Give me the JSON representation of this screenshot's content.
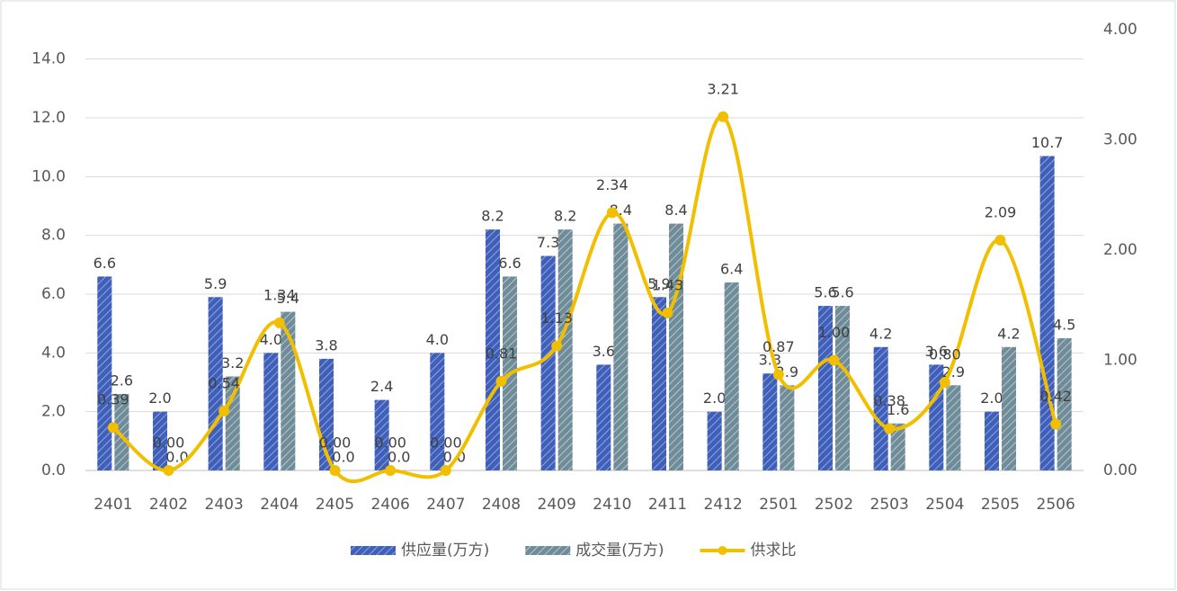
{
  "chart_data": {
    "type": "combo",
    "categories": [
      "2401",
      "2402",
      "2403",
      "2404",
      "2405",
      "2406",
      "2407",
      "2408",
      "2409",
      "2410",
      "2411",
      "2412",
      "2501",
      "2502",
      "2503",
      "2504",
      "2505",
      "2506"
    ],
    "series": [
      {
        "name": "供应量(万方)",
        "type": "bar",
        "color": "#3f5fb8",
        "axis": "y",
        "values": [
          6.6,
          2.0,
          5.9,
          4.0,
          3.8,
          2.4,
          4.0,
          8.2,
          7.3,
          3.6,
          5.9,
          2.0,
          3.3,
          5.6,
          4.2,
          3.6,
          2.0,
          10.7
        ],
        "value_labels": [
          "6.6",
          "2.0",
          "5.9",
          "4.0",
          "3.8",
          "2.4",
          "4.0",
          "8.2",
          "7.3",
          "3.6",
          "5.9",
          "2.0",
          "3.3",
          "5.6",
          "4.2",
          "3.6",
          "2.0",
          "10.7"
        ]
      },
      {
        "name": "成交量(万方)",
        "type": "bar",
        "color": "#6f8c98",
        "axis": "y",
        "values": [
          2.6,
          0.0,
          3.2,
          5.4,
          0.0,
          0.0,
          0.0,
          6.6,
          8.2,
          8.4,
          8.4,
          6.4,
          2.9,
          5.6,
          1.6,
          2.9,
          4.2,
          4.5
        ],
        "value_labels": [
          "2.6",
          "0.0",
          "3.2",
          "5.4",
          "0.0",
          "0.0",
          "0.0",
          "6.6",
          "8.2",
          "8.4",
          "8.4",
          "6.4",
          "2.9",
          "5.6",
          "1.6",
          "2.9",
          "4.2",
          "4.5"
        ]
      },
      {
        "name": "供求比",
        "type": "line",
        "color": "#f2bf00",
        "axis": "y2",
        "values": [
          0.39,
          0,
          0.54,
          1.34,
          0,
          0,
          0,
          0.81,
          1.13,
          2.34,
          1.43,
          3.21,
          0.87,
          1,
          0.38,
          0.8,
          2.09,
          0.42
        ],
        "value_labels": [
          "0.39",
          "0.00",
          "0.54",
          "1.34",
          "0.00",
          "0.00",
          "0.00",
          "0.81",
          "1.13",
          "2.34",
          "1.43",
          "3.21",
          "0.87",
          "1.00",
          "0.38",
          "0.80",
          "2.09",
          "0.42"
        ]
      }
    ],
    "ylim": [
      0,
      15
    ],
    "yticks": [
      {
        "value": 0,
        "label": "0.0"
      },
      {
        "value": 2,
        "label": "2.0"
      },
      {
        "value": 4,
        "label": "4.0"
      },
      {
        "value": 6,
        "label": "6.0"
      },
      {
        "value": 8,
        "label": "8.0"
      },
      {
        "value": 10,
        "label": "10.0"
      },
      {
        "value": 12,
        "label": "12.0"
      },
      {
        "value": 14,
        "label": "14.0"
      }
    ],
    "y2lim": [
      0,
      4
    ],
    "y2ticks": [
      {
        "value": 0,
        "label": "0.00"
      },
      {
        "value": 1,
        "label": "1.00"
      },
      {
        "value": 2,
        "label": "2.00"
      },
      {
        "value": 3,
        "label": "3.00"
      },
      {
        "value": 4,
        "label": "4.00"
      }
    ],
    "grid": true,
    "legend": "bottom"
  }
}
